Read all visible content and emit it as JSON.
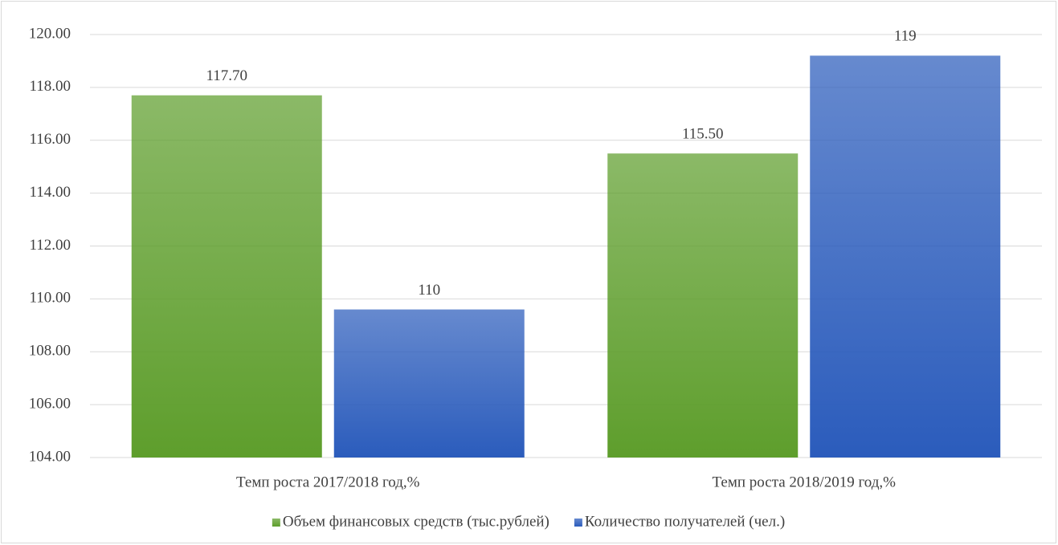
{
  "chart_data": {
    "type": "bar",
    "categories": [
      "Темп роста 2017/2018 год,%",
      "Темп роста 2018/2019 год,%"
    ],
    "series": [
      {
        "name": "Объем финансовых средств (тыс.рублей)",
        "color": "#5e9e2c",
        "values": [
          117.7,
          115.5
        ],
        "value_labels": [
          "117.70",
          "115.50"
        ]
      },
      {
        "name": "Количество получателей (чел.)",
        "color": "#2b5cbc",
        "values": [
          109.6,
          119.2
        ],
        "value_labels": [
          "110",
          "119"
        ]
      }
    ],
    "ylim": [
      104,
      120
    ],
    "yticks": [
      {
        "value": 104,
        "label": "104.00"
      },
      {
        "value": 106,
        "label": "106.00"
      },
      {
        "value": 108,
        "label": "108.00"
      },
      {
        "value": 110,
        "label": "110.00"
      },
      {
        "value": 112,
        "label": "112.00"
      },
      {
        "value": 114,
        "label": "114.00"
      },
      {
        "value": 116,
        "label": "116.00"
      },
      {
        "value": 118,
        "label": "118.00"
      },
      {
        "value": 120,
        "label": "120.00"
      }
    ],
    "grid": true,
    "legend": "bottom"
  }
}
